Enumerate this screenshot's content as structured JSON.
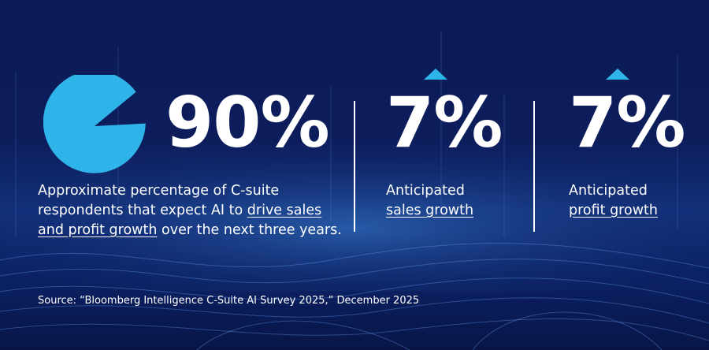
{
  "main_stat": {
    "value": "90%",
    "pie_fraction": 0.9,
    "description_plain_1": "Approximate percentage of C-suite respondents that expect AI to ",
    "description_link": "drive sales and profit growth",
    "description_plain_2": " over the next three years."
  },
  "stats": [
    {
      "value": "7%",
      "label_1": "Anticipated",
      "label_2": "sales growth",
      "trend": "up"
    },
    {
      "value": "7%",
      "label_1": "Anticipated",
      "label_2": "profit growth",
      "trend": "up"
    }
  ],
  "source": "Source: “Bloomberg Intelligence C-Suite AI Survey 2025,” December 2025",
  "colors": {
    "accent": "#2fb4ea",
    "background": "#0d1d5c"
  }
}
